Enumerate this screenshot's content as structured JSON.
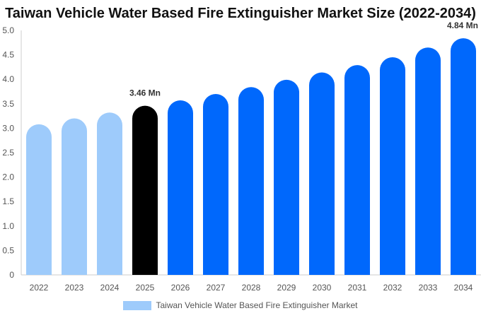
{
  "chart_data": {
    "type": "bar",
    "title": "Taiwan Vehicle Water Based Fire Extinguisher Market Size (2022-2034)",
    "xlabel": "",
    "ylabel": "",
    "ylim": [
      0,
      5.0
    ],
    "yticks": [
      "0",
      "0.5",
      "1.0",
      "1.5",
      "2.0",
      "2.5",
      "3.0",
      "3.5",
      "4.0",
      "4.5",
      "5.0"
    ],
    "categories": [
      "2022",
      "2023",
      "2024",
      "2025",
      "2026",
      "2027",
      "2028",
      "2029",
      "2030",
      "2031",
      "2032",
      "2033",
      "2034"
    ],
    "series": [
      {
        "name": "Taiwan Vehicle Water Based Fire Extinguisher Market",
        "values": [
          3.08,
          3.2,
          3.32,
          3.46,
          3.57,
          3.7,
          3.84,
          3.99,
          4.14,
          4.29,
          4.45,
          4.65,
          4.84
        ]
      }
    ],
    "bar_colors": [
      "#9ecbfb",
      "#9ecbfb",
      "#9ecbfb",
      "#000000",
      "#0068fc",
      "#0068fc",
      "#0068fc",
      "#0068fc",
      "#0068fc",
      "#0068fc",
      "#0068fc",
      "#0068fc",
      "#0068fc"
    ],
    "data_labels": [
      {
        "index": 3,
        "text": "3.46 Mn"
      },
      {
        "index": 12,
        "text": "4.84 Mn"
      }
    ],
    "legend": {
      "position": "bottom",
      "color": "#9ecbfb"
    },
    "grid": false
  }
}
